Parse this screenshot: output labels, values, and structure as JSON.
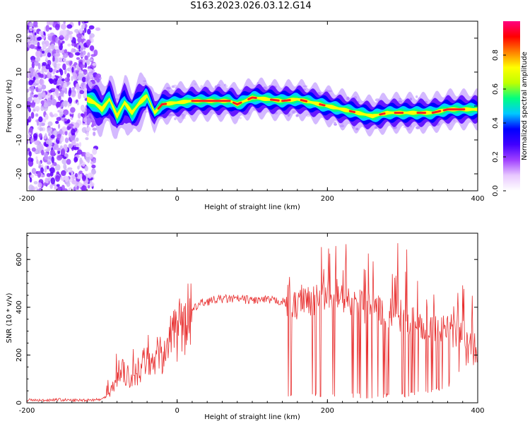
{
  "figure": {
    "title": "S163.2023.026.03.12.G14"
  },
  "chart_data": [
    {
      "type": "heatmap",
      "xlabel": "Height of straight line (km)",
      "ylabel": "Frequency (Hz)",
      "xlim": [
        -200,
        400
      ],
      "ylim": [
        -25,
        25
      ],
      "x_ticks": [
        -200,
        0,
        200,
        400
      ],
      "y_ticks": [
        -20,
        -10,
        0,
        10,
        20
      ],
      "colorbar": {
        "label": "Normalized spectral amplitude",
        "range": [
          0,
          1
        ],
        "ticks": [
          0.0,
          0.2,
          0.4,
          0.6,
          0.8
        ],
        "colormap": [
          "#ffffff",
          "#e8c8ff",
          "#a040ff",
          "#4000ff",
          "#0000ff",
          "#00c8ff",
          "#00ff80",
          "#c0ff00",
          "#ffff00",
          "#ff8000",
          "#ff0000",
          "#ff0080"
        ]
      },
      "ridge": {
        "x": [
          -120,
          -110,
          -100,
          -90,
          -80,
          -70,
          -60,
          -50,
          -40,
          -30,
          -20,
          0,
          20,
          40,
          60,
          70,
          80,
          90,
          100,
          120,
          140,
          160,
          180,
          200,
          220,
          240,
          260,
          280,
          300,
          320,
          340,
          360,
          380,
          400
        ],
        "frequency": [
          2,
          1,
          -1,
          2,
          -3,
          1,
          -2,
          1,
          3,
          -2,
          0.5,
          1,
          1.5,
          1.5,
          1.5,
          1.5,
          0.5,
          1.5,
          2.5,
          2,
          1.5,
          2,
          1,
          0,
          -1,
          -2,
          -3,
          -2,
          -2,
          -2,
          -2,
          -1,
          -1,
          -1
        ]
      },
      "noise_region": {
        "x_range": [
          -200,
          -110
        ],
        "frequency_range": [
          -25,
          25
        ]
      }
    },
    {
      "type": "line",
      "xlabel": "Height of straight line (km)",
      "ylabel": "SNR (10 * v/v)",
      "xlim": [
        -200,
        400
      ],
      "ylim": [
        0,
        710
      ],
      "x_ticks": [
        -200,
        0,
        200,
        400
      ],
      "y_ticks": [
        0,
        200,
        400,
        600
      ],
      "series": [
        {
          "color": "#e83030",
          "x": [
            -200,
            -180,
            -160,
            -140,
            -120,
            -100,
            -90,
            -80,
            -70,
            -60,
            -50,
            -40,
            -30,
            -20,
            -10,
            0,
            10,
            20,
            30,
            40,
            60,
            80,
            100,
            120,
            140,
            145,
            150,
            155,
            160,
            170,
            180,
            190,
            200,
            210,
            220,
            240,
            260,
            280,
            300,
            320,
            340,
            360,
            380,
            400
          ],
          "y": [
            12,
            10,
            14,
            10,
            12,
            14,
            40,
            95,
            120,
            100,
            145,
            170,
            180,
            210,
            260,
            300,
            350,
            385,
            415,
            425,
            435,
            435,
            430,
            430,
            425,
            415,
            440,
            400,
            420,
            450,
            430,
            450,
            450,
            450,
            440,
            420,
            380,
            380,
            360,
            330,
            320,
            300,
            300,
            240
          ]
        }
      ],
      "envelope": {
        "x": [
          145,
          160,
          180,
          200,
          220,
          240,
          260,
          280,
          300,
          320,
          340,
          360,
          380
        ],
        "max": [
          520,
          560,
          660,
          650,
          690,
          660,
          650,
          680,
          710,
          620,
          600,
          520,
          500
        ],
        "min": [
          20,
          15,
          20,
          25,
          20,
          20,
          15,
          20,
          20,
          30,
          40,
          60,
          150
        ]
      }
    }
  ]
}
